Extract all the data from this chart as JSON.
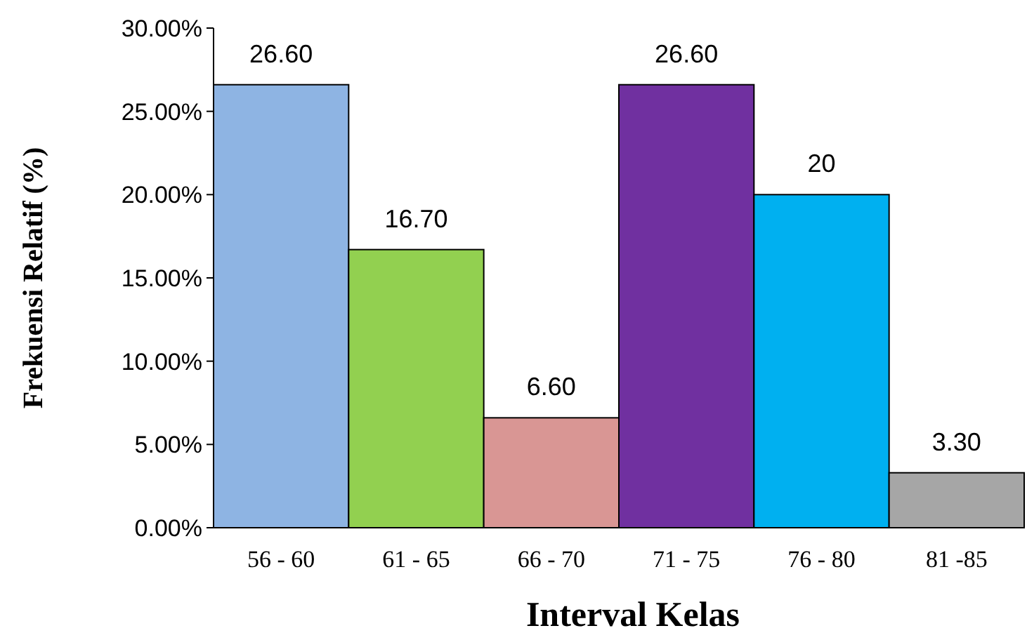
{
  "chart_data": {
    "type": "bar",
    "xlabel": "Interval Kelas",
    "ylabel": "Frekuensi Relatif (%)",
    "categories": [
      "56 - 60",
      "61 - 65",
      "66 - 70",
      "71 - 75",
      "76 - 80",
      "81 -85"
    ],
    "values": [
      26.6,
      16.7,
      6.6,
      26.6,
      20,
      3.3
    ],
    "colors": [
      "#8eb4e3",
      "#92d050",
      "#d99694",
      "#7030a0",
      "#00b0f0",
      "#a6a6a6"
    ],
    "value_labels": [
      "26.60",
      "16.70",
      "6.60",
      "26.60",
      "20",
      "3.30"
    ],
    "ylim": [
      0,
      30
    ],
    "yticks": [
      {
        "value": 0,
        "label": "0.00%"
      },
      {
        "value": 5,
        "label": "5.00%"
      },
      {
        "value": 10,
        "label": "10.00%"
      },
      {
        "value": 15,
        "label": "15.00%"
      },
      {
        "value": 20,
        "label": "20.00%"
      },
      {
        "value": 25,
        "label": "25.00%"
      },
      {
        "value": 30,
        "label": "30.00%"
      }
    ],
    "grid": false
  }
}
